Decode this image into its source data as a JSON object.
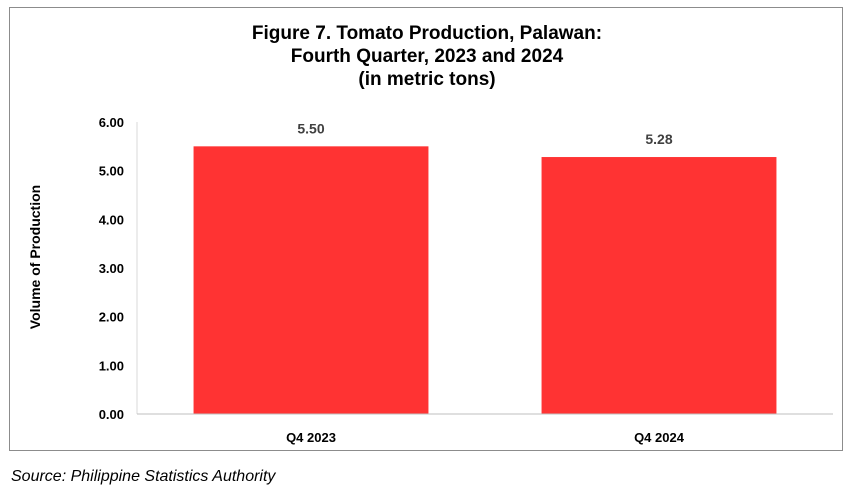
{
  "chart_data": {
    "type": "bar",
    "title_lines": [
      "Figure 7. Tomato Production, Palawan:",
      "Fourth Quarter, 2023 and 2024",
      "(in metric tons)"
    ],
    "categories": [
      "Q4 2023",
      "Q4 2024"
    ],
    "values": [
      5.5,
      5.28
    ],
    "data_labels": [
      "5.50",
      "5.28"
    ],
    "ylabel": "Volume of Production",
    "xlabel": "",
    "ylim": [
      0,
      6
    ],
    "yticks": [
      "0.00",
      "1.00",
      "2.00",
      "3.00",
      "4.00",
      "5.00",
      "6.00"
    ],
    "grid": false,
    "legend": "none",
    "bar_color": "#ff3333"
  },
  "source": "Source: Philippine Statistics Authority"
}
